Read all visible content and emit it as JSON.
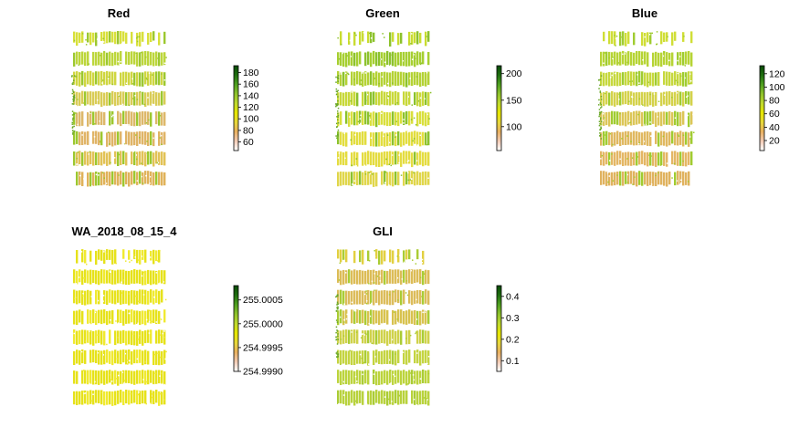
{
  "chart_data": [
    {
      "type": "heatmap",
      "title": "Red",
      "legend": {
        "ticks": [
          60,
          80,
          100,
          120,
          140,
          160,
          180
        ],
        "range": [
          45,
          192
        ]
      },
      "pattern": "bands-orange-middle"
    },
    {
      "type": "heatmap",
      "title": "Green",
      "legend": {
        "ticks": [
          100,
          150,
          200
        ],
        "range": [
          55,
          215
        ]
      },
      "pattern": "bands-yellow-green"
    },
    {
      "type": "heatmap",
      "title": "Blue",
      "legend": {
        "ticks": [
          20,
          40,
          60,
          80,
          100,
          120
        ],
        "range": [
          5,
          132
        ]
      },
      "pattern": "bands-orange-lower"
    },
    {
      "type": "heatmap",
      "title": "WA_2018_08_15_4",
      "legend": {
        "ticks": [
          "254.9990",
          "254.9995",
          "255.0000",
          "255.0005"
        ],
        "tick_values": [
          254.999,
          254.9995,
          255.0,
          255.0005
        ],
        "range": [
          254.999,
          255.0008
        ]
      },
      "pattern": "uniform-yellow"
    },
    {
      "type": "heatmap",
      "title": "GLI",
      "legend": {
        "ticks": [
          0.1,
          0.2,
          0.3,
          0.4
        ],
        "range": [
          0.05,
          0.45
        ]
      },
      "pattern": "bands-orange-top"
    }
  ],
  "colors": {
    "palette": [
      "#ffffff",
      "#f2cbb5",
      "#e8b060",
      "#e6d83a",
      "#e6e600",
      "#bfd92e",
      "#8fc22c",
      "#4fa020",
      "#1f6e10",
      "#0a4a05"
    ]
  }
}
